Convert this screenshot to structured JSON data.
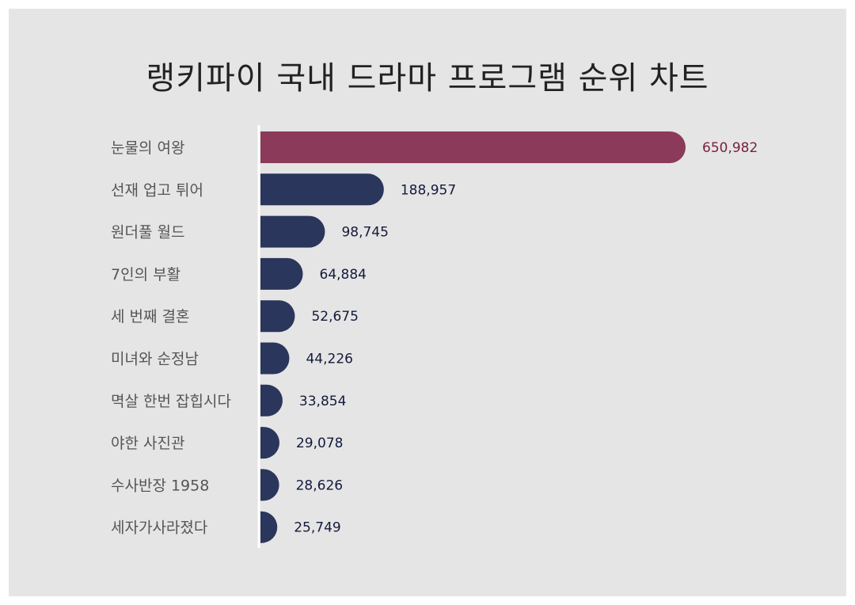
{
  "chart_data": {
    "type": "bar",
    "orientation": "horizontal",
    "title": "랭키파이 국내 드라마 프로그램 순위 차트",
    "categories": [
      "눈물의 여왕",
      "선재 업고 튀어",
      "원더풀 월드",
      "7인의 부활",
      "세 번째 결혼",
      "미녀와 순정남",
      "멱살 한번 잡힙시다",
      "야한 사진관",
      "수사반장 1958",
      "세자가사라졌다"
    ],
    "values": [
      650982,
      188957,
      98745,
      64884,
      52675,
      44226,
      33854,
      29078,
      28626,
      25749
    ],
    "value_labels": [
      "650,982",
      "188,957",
      "98,745",
      "64,884",
      "52,675",
      "44,226",
      "33,854",
      "29,078",
      "28,626",
      "25,749"
    ],
    "xlim": [
      0,
      650982
    ],
    "grid": false,
    "legend": "none"
  },
  "colors": {
    "background": "#e5e5e5",
    "highlight_bar": "#8b3a59",
    "highlight_label": "#7a1f40",
    "bar": "#2b365c",
    "value_label": "#141a3c",
    "category_label": "#555555",
    "axis": "#ffffff"
  }
}
